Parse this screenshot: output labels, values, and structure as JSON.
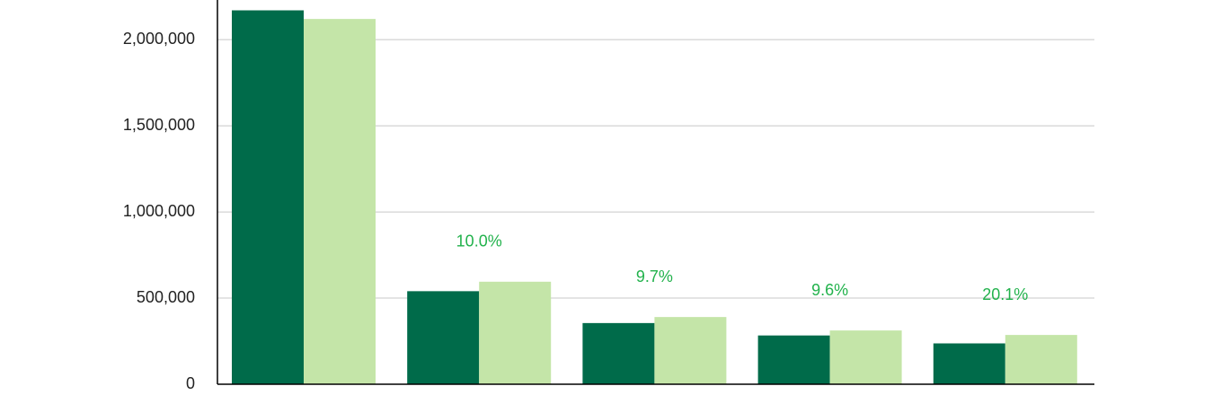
{
  "chart_data": {
    "type": "bar",
    "categories": [
      null,
      null,
      null,
      null,
      null
    ],
    "series": [
      {
        "color": "#006b4a",
        "values": [
          2170000,
          540000,
          355000,
          283000,
          237000
        ]
      },
      {
        "color": "#c4e5a8",
        "values": [
          2120000,
          595000,
          390000,
          312000,
          286000
        ]
      }
    ],
    "annotations": [
      "10.0%",
      "9.7%",
      "9.6%",
      "20.1%"
    ],
    "annotation_color": "#22b24c",
    "ylim": [
      0,
      2230000
    ],
    "yticks": [
      0,
      {
        "value": 500000,
        "label": "500,000"
      },
      {
        "value": 1000000,
        "label": "1,000,000"
      },
      {
        "value": 1500000,
        "label": "1,500,000"
      },
      {
        "value": 2000000,
        "label": "2,000,000"
      }
    ],
    "grid": true
  }
}
